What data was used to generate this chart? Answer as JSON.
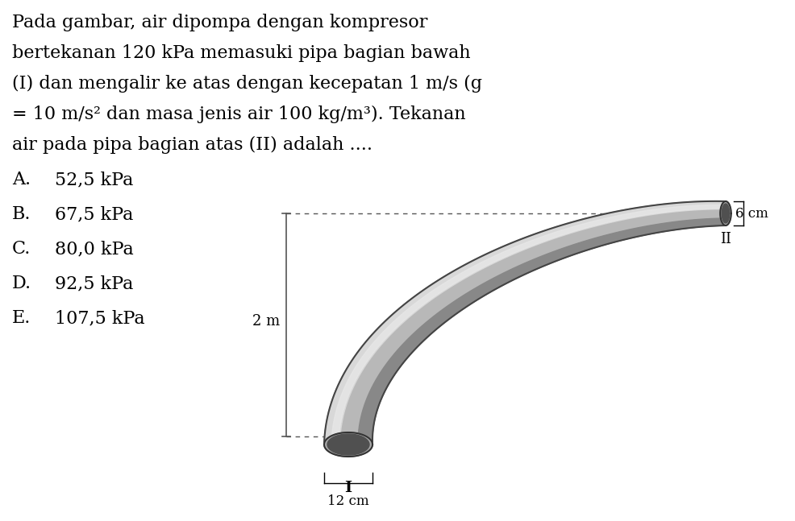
{
  "title_text": "Pada gambar, air dipompa dengan kompresor\nbertekanan 120 kPa memasuki pipa bagian bawah\n(I) dan mengalir ke atas dengan kecepatan 1 m/s (g\n= 10 m/s² dan masa jenis air 100 kg/m³). Tekanan\nair pada pipa bagian atas (II) adalah ....",
  "options": [
    "A.\t52,5 kPa",
    "B.\t67,5 kPa",
    "C.\t80,0 kPa",
    "D.\t92,5 kPa",
    "E.\t107,5 kPa"
  ],
  "label_2m": "2 m",
  "label_12cm": "12 cm",
  "label_6cm": "6 cm",
  "label_I": "I",
  "label_II": "II",
  "bg_color": "#ffffff",
  "text_color": "#000000",
  "pipe_color_light": "#d0d0d0",
  "pipe_color_dark": "#808080",
  "pipe_color_mid": "#b0b0b0",
  "dashed_line_color": "#555555",
  "font_size_text": 15,
  "font_size_labels": 12,
  "font_size_options": 15
}
